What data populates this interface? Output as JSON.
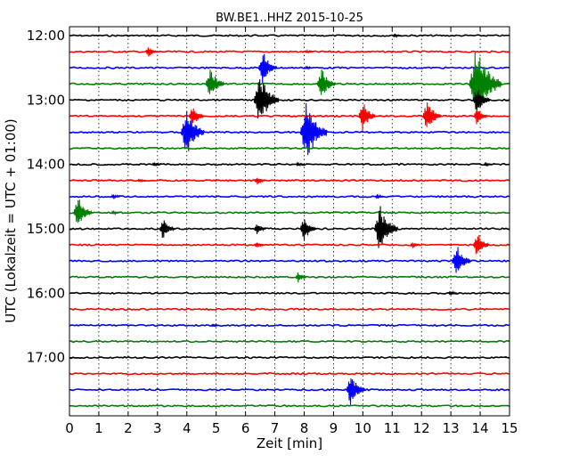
{
  "chart_data": {
    "type": "line",
    "title": "BW.BE1..HHZ 2015-10-25",
    "xlabel": "Zeit  [min]",
    "ylabel": "UTC (Lokalzeit = UTC + 01:00)",
    "xlim": [
      0,
      15
    ],
    "x_ticks": [
      "0",
      "1",
      "2",
      "3",
      "4",
      "5",
      "6",
      "7",
      "8",
      "9",
      "10",
      "11",
      "12",
      "13",
      "14",
      "15"
    ],
    "y_ticks": [
      {
        "label": "12:00",
        "row": 0
      },
      {
        "label": "13:00",
        "row": 4
      },
      {
        "label": "14:00",
        "row": 8
      },
      {
        "label": "15:00",
        "row": 12
      },
      {
        "label": "16:00",
        "row": 16
      },
      {
        "label": "17:00",
        "row": 20
      }
    ],
    "row_interval_minutes": 15,
    "grid": "vertical dotted",
    "trace_colors": [
      "#000000",
      "#ff0000",
      "#0000ff",
      "#008000"
    ],
    "traces": [
      {
        "start": "12:00",
        "events": [
          {
            "t": 11.1,
            "amp": 0.12
          }
        ]
      },
      {
        "start": "12:15",
        "events": [
          {
            "t": 2.7,
            "amp": 0.3
          },
          {
            "t": 8.1,
            "amp": 0.1
          }
        ]
      },
      {
        "start": "12:30",
        "events": [
          {
            "t": 6.6,
            "amp": 0.9
          },
          {
            "t": 8.1,
            "amp": 0.1
          }
        ]
      },
      {
        "start": "12:45",
        "events": [
          {
            "t": 4.8,
            "amp": 0.9
          },
          {
            "t": 8.6,
            "amp": 0.9
          },
          {
            "t": 13.9,
            "amp": 2.0
          }
        ]
      },
      {
        "start": "13:00",
        "events": [
          {
            "t": 6.5,
            "amp": 1.4
          },
          {
            "t": 13.9,
            "amp": 0.8
          }
        ]
      },
      {
        "start": "13:15",
        "events": [
          {
            "t": 4.2,
            "amp": 0.6
          },
          {
            "t": 10.0,
            "amp": 0.8
          },
          {
            "t": 12.2,
            "amp": 0.9
          },
          {
            "t": 13.9,
            "amp": 0.5
          }
        ]
      },
      {
        "start": "13:30",
        "events": [
          {
            "t": 4.0,
            "amp": 1.3
          },
          {
            "t": 8.1,
            "amp": 1.6
          }
        ]
      },
      {
        "start": "13:45",
        "events": []
      },
      {
        "start": "14:00",
        "events": [
          {
            "t": 2.9,
            "amp": 0.15
          },
          {
            "t": 7.8,
            "amp": 0.12
          },
          {
            "t": 14.2,
            "amp": 0.12
          }
        ]
      },
      {
        "start": "14:15",
        "events": [
          {
            "t": 2.4,
            "amp": 0.1
          },
          {
            "t": 6.4,
            "amp": 0.25
          }
        ]
      },
      {
        "start": "14:30",
        "events": [
          {
            "t": 1.5,
            "amp": 0.15
          },
          {
            "t": 10.5,
            "amp": 0.15
          }
        ]
      },
      {
        "start": "14:45",
        "events": [
          {
            "t": 0.3,
            "amp": 0.9
          },
          {
            "t": 1.5,
            "amp": 0.12
          }
        ]
      },
      {
        "start": "15:00",
        "events": [
          {
            "t": 3.2,
            "amp": 0.6
          },
          {
            "t": 6.4,
            "amp": 0.35
          },
          {
            "t": 8.0,
            "amp": 0.7
          },
          {
            "t": 10.6,
            "amp": 1.3
          }
        ]
      },
      {
        "start": "15:15",
        "events": [
          {
            "t": 6.4,
            "amp": 0.2
          },
          {
            "t": 11.7,
            "amp": 0.2
          },
          {
            "t": 13.9,
            "amp": 0.7
          }
        ]
      },
      {
        "start": "15:30",
        "events": [
          {
            "t": 13.2,
            "amp": 0.9
          }
        ]
      },
      {
        "start": "15:45",
        "events": [
          {
            "t": 7.8,
            "amp": 0.3
          }
        ]
      },
      {
        "start": "16:00",
        "events": [
          {
            "t": 13.0,
            "amp": 0.15
          }
        ]
      },
      {
        "start": "16:15",
        "events": []
      },
      {
        "start": "16:30",
        "events": [
          {
            "t": 4.9,
            "amp": 0.1
          }
        ]
      },
      {
        "start": "16:45",
        "events": []
      },
      {
        "start": "17:00",
        "events": []
      },
      {
        "start": "17:15",
        "events": []
      },
      {
        "start": "17:30",
        "events": [
          {
            "t": 9.6,
            "amp": 0.9
          }
        ]
      },
      {
        "start": "17:45",
        "events": []
      }
    ]
  }
}
